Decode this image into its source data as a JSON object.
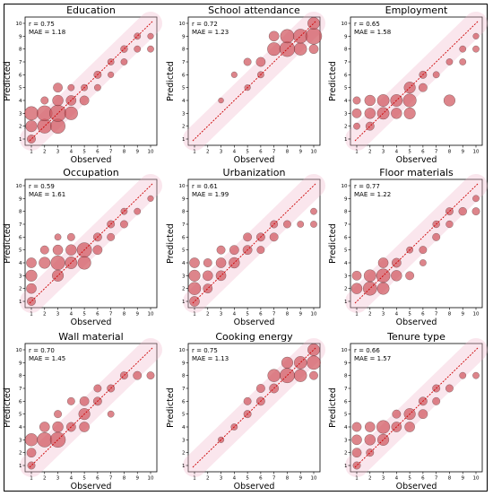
{
  "colors": {
    "bubble": "#d0565e",
    "edge": "#000000",
    "diagonal": "#cc0000",
    "halo": "#f2b6cc"
  },
  "chart_data": [
    {
      "type": "scatter",
      "title": "Education",
      "xlabel": "Observed",
      "ylabel": "Predicted",
      "stat_r": "r = 0.75",
      "stat_mae": "MAE = 1.18",
      "xlim": [
        1,
        10
      ],
      "ylim": [
        1,
        10
      ],
      "ticks": [
        "1",
        "2",
        "3",
        "4",
        "5",
        "6",
        "7",
        "8",
        "9",
        "10"
      ],
      "points": [
        [
          1,
          1,
          10
        ],
        [
          1,
          2,
          18
        ],
        [
          1,
          3,
          26
        ],
        [
          2,
          2,
          28
        ],
        [
          2,
          3,
          32
        ],
        [
          3,
          2,
          30
        ],
        [
          3,
          3,
          38
        ],
        [
          3,
          4,
          16
        ],
        [
          4,
          3,
          24
        ],
        [
          4,
          4,
          14
        ],
        [
          5,
          4,
          12
        ],
        [
          5,
          5,
          6
        ],
        [
          6,
          5,
          6
        ],
        [
          6,
          6,
          8
        ],
        [
          7,
          6,
          5
        ],
        [
          7,
          7,
          6
        ],
        [
          8,
          7,
          6
        ],
        [
          8,
          8,
          7
        ],
        [
          9,
          8,
          6
        ],
        [
          9,
          9,
          6
        ],
        [
          10,
          8,
          6
        ],
        [
          10,
          9,
          5
        ],
        [
          3,
          5,
          12
        ],
        [
          2,
          4,
          8
        ],
        [
          4,
          5,
          6
        ]
      ]
    },
    {
      "type": "scatter",
      "title": "School attendance",
      "xlabel": "Observed",
      "ylabel": "Predicted",
      "stat_r": "r = 0.72",
      "stat_mae": "MAE = 1.23",
      "xlim": [
        1,
        10
      ],
      "ylim": [
        1,
        10
      ],
      "ticks": [
        "1",
        "2",
        "3",
        "4",
        "5",
        "6",
        "7",
        "8",
        "9",
        "10"
      ],
      "points": [
        [
          7,
          8,
          24
        ],
        [
          7,
          9,
          14
        ],
        [
          8,
          8,
          32
        ],
        [
          8,
          9,
          26
        ],
        [
          9,
          8,
          22
        ],
        [
          9,
          9,
          28
        ],
        [
          10,
          9,
          36
        ],
        [
          10,
          10,
          20
        ],
        [
          6,
          7,
          12
        ],
        [
          5,
          7,
          8
        ],
        [
          6,
          6,
          6
        ],
        [
          5,
          5,
          5
        ],
        [
          10,
          8,
          12
        ],
        [
          4,
          6,
          5
        ],
        [
          3,
          4,
          4
        ]
      ]
    },
    {
      "type": "scatter",
      "title": "Employment",
      "xlabel": "Observed",
      "ylabel": "Predicted",
      "stat_r": "r = 0.65",
      "stat_mae": "MAE = 1.58",
      "xlim": [
        1,
        10
      ],
      "ylim": [
        1,
        10
      ],
      "ticks": [
        "1",
        "2",
        "3",
        "4",
        "5",
        "6",
        "7",
        "8",
        "9",
        "10"
      ],
      "points": [
        [
          1,
          3,
          12
        ],
        [
          1,
          4,
          8
        ],
        [
          2,
          3,
          16
        ],
        [
          2,
          4,
          16
        ],
        [
          3,
          3,
          20
        ],
        [
          3,
          4,
          20
        ],
        [
          4,
          3,
          16
        ],
        [
          4,
          4,
          20
        ],
        [
          5,
          3,
          18
        ],
        [
          5,
          4,
          24
        ],
        [
          5,
          5,
          18
        ],
        [
          6,
          5,
          10
        ],
        [
          6,
          6,
          8
        ],
        [
          8,
          4,
          18
        ],
        [
          7,
          6,
          6
        ],
        [
          8,
          7,
          6
        ],
        [
          9,
          7,
          6
        ],
        [
          9,
          8,
          6
        ],
        [
          10,
          8,
          6
        ],
        [
          10,
          9,
          5
        ],
        [
          1,
          2,
          6
        ],
        [
          2,
          2,
          10
        ]
      ]
    },
    {
      "type": "scatter",
      "title": "Occupation",
      "xlabel": "Observed",
      "ylabel": "Predicted",
      "stat_r": "r = 0.59",
      "stat_mae": "MAE = 1.61",
      "xlim": [
        1,
        10
      ],
      "ylim": [
        1,
        10
      ],
      "ticks": [
        "1",
        "2",
        "3",
        "4",
        "5",
        "6",
        "7",
        "8",
        "9",
        "10"
      ],
      "points": [
        [
          1,
          1,
          10
        ],
        [
          1,
          2,
          14
        ],
        [
          1,
          3,
          18
        ],
        [
          1,
          4,
          14
        ],
        [
          2,
          4,
          18
        ],
        [
          2,
          5,
          10
        ],
        [
          3,
          3,
          18
        ],
        [
          3,
          4,
          28
        ],
        [
          3,
          5,
          14
        ],
        [
          4,
          4,
          20
        ],
        [
          4,
          5,
          16
        ],
        [
          5,
          4,
          24
        ],
        [
          5,
          5,
          30
        ],
        [
          6,
          5,
          12
        ],
        [
          6,
          6,
          10
        ],
        [
          7,
          6,
          8
        ],
        [
          7,
          7,
          8
        ],
        [
          8,
          7,
          8
        ],
        [
          8,
          8,
          6
        ],
        [
          9,
          8,
          6
        ],
        [
          10,
          9,
          5
        ],
        [
          4,
          6,
          8
        ],
        [
          3,
          6,
          6
        ]
      ]
    },
    {
      "type": "scatter",
      "title": "Urbanization",
      "xlabel": "Observed",
      "ylabel": "Predicted",
      "stat_r": "r = 0.61",
      "stat_mae": "MAE = 1.99",
      "xlim": [
        1,
        10
      ],
      "ylim": [
        1,
        10
      ],
      "ticks": [
        "1",
        "2",
        "3",
        "4",
        "5",
        "6",
        "7",
        "8",
        "9",
        "10"
      ],
      "points": [
        [
          1,
          1,
          14
        ],
        [
          1,
          2,
          22
        ],
        [
          1,
          3,
          18
        ],
        [
          1,
          4,
          14
        ],
        [
          2,
          2,
          12
        ],
        [
          2,
          3,
          14
        ],
        [
          3,
          3,
          14
        ],
        [
          3,
          4,
          14
        ],
        [
          4,
          4,
          16
        ],
        [
          4,
          5,
          12
        ],
        [
          5,
          5,
          12
        ],
        [
          5,
          6,
          10
        ],
        [
          6,
          6,
          10
        ],
        [
          7,
          6,
          10
        ],
        [
          7,
          7,
          8
        ],
        [
          8,
          7,
          8
        ],
        [
          9,
          7,
          6
        ],
        [
          10,
          8,
          6
        ],
        [
          3,
          5,
          10
        ],
        [
          2,
          4,
          10
        ],
        [
          6,
          5,
          8
        ],
        [
          10,
          7,
          6
        ]
      ]
    },
    {
      "type": "scatter",
      "title": "Floor materials",
      "xlabel": "Observed",
      "ylabel": "Predicted",
      "stat_r": "r = 0.77",
      "stat_mae": "MAE = 1.22",
      "xlim": [
        1,
        10
      ],
      "ylim": [
        1,
        10
      ],
      "ticks": [
        "1",
        "2",
        "3",
        "4",
        "5",
        "6",
        "7",
        "8",
        "9",
        "10"
      ],
      "points": [
        [
          1,
          2,
          16
        ],
        [
          1,
          3,
          12
        ],
        [
          2,
          2,
          26
        ],
        [
          2,
          3,
          20
        ],
        [
          3,
          2,
          20
        ],
        [
          3,
          3,
          26
        ],
        [
          3,
          4,
          14
        ],
        [
          4,
          3,
          16
        ],
        [
          4,
          4,
          12
        ],
        [
          5,
          3,
          10
        ],
        [
          6,
          5,
          8
        ],
        [
          7,
          6,
          8
        ],
        [
          7,
          7,
          7
        ],
        [
          8,
          7,
          7
        ],
        [
          8,
          8,
          8
        ],
        [
          9,
          8,
          9
        ],
        [
          10,
          8,
          8
        ],
        [
          10,
          9,
          6
        ],
        [
          6,
          4,
          6
        ],
        [
          5,
          5,
          6
        ]
      ]
    },
    {
      "type": "scatter",
      "title": "Wall material",
      "xlabel": "Observed",
      "ylabel": "Predicted",
      "stat_r": "r = 0.70",
      "stat_mae": "MAE = 1.45",
      "xlim": [
        1,
        10
      ],
      "ylim": [
        1,
        10
      ],
      "ticks": [
        "1",
        "2",
        "3",
        "4",
        "5",
        "6",
        "7",
        "8",
        "9",
        "10"
      ],
      "points": [
        [
          1,
          1,
          8
        ],
        [
          1,
          2,
          12
        ],
        [
          1,
          3,
          22
        ],
        [
          2,
          3,
          30
        ],
        [
          2,
          4,
          14
        ],
        [
          3,
          3,
          32
        ],
        [
          3,
          4,
          16
        ],
        [
          4,
          4,
          12
        ],
        [
          5,
          5,
          18
        ],
        [
          5,
          4,
          14
        ],
        [
          5,
          6,
          12
        ],
        [
          6,
          6,
          10
        ],
        [
          6,
          7,
          8
        ],
        [
          7,
          7,
          8
        ],
        [
          8,
          8,
          8
        ],
        [
          9,
          8,
          10
        ],
        [
          10,
          8,
          8
        ],
        [
          4,
          6,
          8
        ],
        [
          3,
          5,
          8
        ],
        [
          7,
          5,
          6
        ]
      ]
    },
    {
      "type": "scatter",
      "title": "Cooking energy",
      "xlabel": "Observed",
      "ylabel": "Predicted",
      "stat_r": "r = 0.75",
      "stat_mae": "MAE = 1.13",
      "xlim": [
        1,
        10
      ],
      "ylim": [
        1,
        10
      ],
      "ticks": [
        "1",
        "2",
        "3",
        "4",
        "5",
        "6",
        "7",
        "8",
        "9",
        "10"
      ],
      "points": [
        [
          7,
          8,
          22
        ],
        [
          8,
          8,
          30
        ],
        [
          8,
          9,
          18
        ],
        [
          9,
          8,
          22
        ],
        [
          9,
          9,
          22
        ],
        [
          10,
          9,
          26
        ],
        [
          10,
          10,
          20
        ],
        [
          7,
          7,
          12
        ],
        [
          6,
          7,
          10
        ],
        [
          6,
          6,
          10
        ],
        [
          5,
          5,
          8
        ],
        [
          5,
          6,
          8
        ],
        [
          4,
          4,
          6
        ],
        [
          3,
          3,
          5
        ],
        [
          10,
          8,
          10
        ]
      ]
    },
    {
      "type": "scatter",
      "title": "Tenure type",
      "xlabel": "Observed",
      "ylabel": "Predicted",
      "stat_r": "r = 0.66",
      "stat_mae": "MAE = 1.57",
      "xlim": [
        1,
        10
      ],
      "ylim": [
        1,
        10
      ],
      "ticks": [
        "1",
        "2",
        "3",
        "4",
        "5",
        "6",
        "7",
        "8",
        "9",
        "10"
      ],
      "points": [
        [
          1,
          1,
          8
        ],
        [
          1,
          2,
          12
        ],
        [
          1,
          3,
          14
        ],
        [
          1,
          4,
          12
        ],
        [
          2,
          3,
          16
        ],
        [
          2,
          4,
          14
        ],
        [
          3,
          3,
          18
        ],
        [
          3,
          4,
          24
        ],
        [
          4,
          4,
          14
        ],
        [
          5,
          4,
          14
        ],
        [
          5,
          5,
          18
        ],
        [
          6,
          5,
          12
        ],
        [
          6,
          6,
          10
        ],
        [
          7,
          6,
          8
        ],
        [
          7,
          7,
          8
        ],
        [
          8,
          7,
          8
        ],
        [
          9,
          8,
          6
        ],
        [
          10,
          8,
          6
        ],
        [
          4,
          5,
          10
        ],
        [
          2,
          2,
          8
        ]
      ]
    }
  ]
}
